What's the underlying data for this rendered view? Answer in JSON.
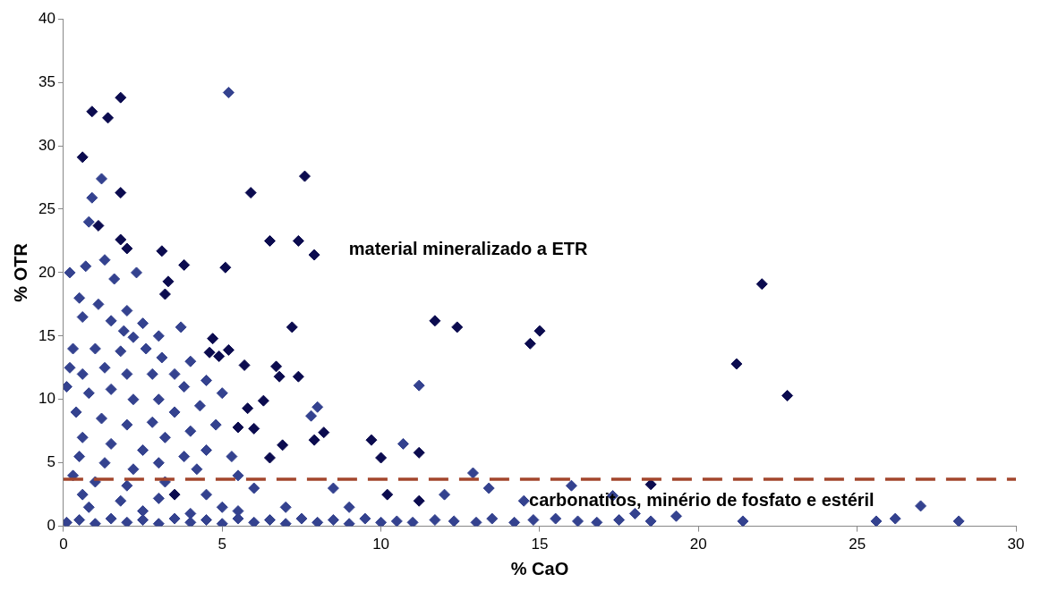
{
  "chart_data": {
    "type": "scatter",
    "xlabel": "% CaO",
    "ylabel": "% OTR",
    "xlim": [
      0,
      30
    ],
    "ylim": [
      0,
      40
    ],
    "xticks": [
      0,
      5,
      10,
      15,
      20,
      25,
      30
    ],
    "yticks": [
      0,
      5,
      10,
      15,
      20,
      25,
      30,
      35,
      40
    ],
    "grid": false,
    "legend": false,
    "marker": "diamond",
    "series": [
      {
        "color": "#0b0b4f",
        "x": [
          0.9,
          1.4,
          1.8,
          0.6,
          1.8,
          7.6,
          5.9,
          6.5,
          7.4,
          7.9,
          3.1,
          3.8,
          5.1,
          3.3,
          3.2,
          1.8,
          2.0,
          1.1,
          22.0,
          11.7,
          12.4,
          15.0,
          14.7,
          21.2,
          22.8,
          7.2,
          7.4,
          11.2,
          11.2,
          10.2,
          9.7,
          10.0,
          8.2,
          7.9,
          6.9,
          6.5,
          6.3,
          6.7,
          6.8,
          5.8,
          5.7,
          5.5,
          6.0,
          5.2,
          4.9,
          4.7,
          4.6,
          3.5,
          18.5
        ],
        "values": [
          32.7,
          32.2,
          33.8,
          29.1,
          26.3,
          27.6,
          26.3,
          22.5,
          22.5,
          21.4,
          21.7,
          20.6,
          20.4,
          19.3,
          18.3,
          22.6,
          21.9,
          23.7,
          19.1,
          16.2,
          15.7,
          15.4,
          14.4,
          12.8,
          10.3,
          15.7,
          11.8,
          5.8,
          2.0,
          2.5,
          6.8,
          5.4,
          7.4,
          6.8,
          6.4,
          5.4,
          9.9,
          12.6,
          11.8,
          9.3,
          12.7,
          7.8,
          7.7,
          13.9,
          13.4,
          14.8,
          13.7,
          2.5,
          3.3
        ]
      },
      {
        "color": "#34428f",
        "x": [
          5.2,
          1.2,
          0.9,
          0.8,
          1.3,
          0.2,
          0.7,
          1.6,
          2.3,
          0.5,
          1.1,
          2.0,
          0.6,
          1.5,
          2.5,
          0.3,
          1.0,
          1.8,
          2.6,
          3.0,
          3.7,
          0.2,
          0.6,
          1.3,
          2.0,
          2.8,
          3.5,
          4.0,
          0.1,
          0.8,
          1.5,
          2.2,
          3.0,
          3.8,
          4.5,
          0.4,
          1.2,
          2.0,
          2.8,
          3.5,
          4.3,
          5.0,
          0.6,
          1.5,
          2.5,
          3.2,
          4.0,
          4.8,
          0.5,
          1.3,
          2.2,
          3.0,
          3.8,
          4.5,
          5.3,
          0.3,
          1.0,
          2.0,
          3.2,
          4.2,
          5.5,
          0.6,
          1.8,
          3.0,
          4.5,
          6.0,
          0.8,
          2.5,
          4.0,
          5.5,
          7.0,
          8.5,
          9.0,
          0.1,
          0.5,
          1.0,
          1.5,
          2.0,
          2.5,
          3.0,
          3.5,
          4.0,
          4.5,
          5.0,
          5.5,
          6.0,
          6.5,
          7.0,
          7.5,
          8.0,
          8.5,
          9.0,
          9.5,
          10.0,
          10.5,
          11.0,
          11.7,
          12.3,
          13.0,
          13.5,
          14.2,
          14.8,
          15.5,
          16.2,
          16.8,
          17.5,
          18.5,
          19.3,
          21.4,
          25.6,
          26.2,
          27.0,
          28.2,
          12.9,
          16.0,
          13.4,
          10.7,
          11.2,
          8.0,
          7.8,
          12.0,
          14.5,
          17.3,
          18.0,
          5.0,
          2.2,
          3.1,
          1.9
        ],
        "values": [
          34.2,
          27.4,
          25.9,
          24.0,
          21.0,
          20.0,
          20.5,
          19.5,
          20.0,
          18.0,
          17.5,
          17.0,
          16.5,
          16.2,
          16.0,
          14.0,
          14.0,
          13.8,
          14.0,
          15.0,
          15.7,
          12.5,
          12.0,
          12.5,
          12.0,
          12.0,
          12.0,
          13.0,
          11.0,
          10.5,
          10.8,
          10.0,
          10.0,
          11.0,
          11.5,
          9.0,
          8.5,
          8.0,
          8.2,
          9.0,
          9.5,
          10.5,
          7.0,
          6.5,
          6.0,
          7.0,
          7.5,
          8.0,
          5.5,
          5.0,
          4.5,
          5.0,
          5.5,
          6.0,
          5.5,
          4.0,
          3.5,
          3.2,
          3.5,
          4.5,
          4.0,
          2.5,
          2.0,
          2.2,
          2.5,
          3.0,
          1.5,
          1.2,
          1.0,
          1.2,
          1.5,
          3.0,
          1.5,
          0.3,
          0.5,
          0.2,
          0.6,
          0.3,
          0.5,
          0.2,
          0.6,
          0.3,
          0.5,
          0.2,
          0.6,
          0.3,
          0.5,
          0.2,
          0.6,
          0.3,
          0.5,
          0.2,
          0.6,
          0.3,
          0.4,
          0.3,
          0.5,
          0.4,
          0.3,
          0.6,
          0.3,
          0.5,
          0.6,
          0.4,
          0.3,
          0.5,
          0.4,
          0.8,
          0.4,
          0.4,
          0.6,
          1.6,
          0.4,
          4.2,
          3.2,
          3.0,
          6.5,
          11.1,
          9.4,
          8.7,
          2.5,
          2.0,
          2.4,
          1.0,
          1.5,
          14.9,
          13.3,
          15.4
        ]
      }
    ],
    "ref_lines": [
      {
        "axis": "y",
        "value": 3.7,
        "color": "#a3452c",
        "line_style": "dashed"
      }
    ],
    "annotations": [
      "material mineralizado a ETR",
      "carbonatitos, minério de fosfato e estéril"
    ]
  }
}
